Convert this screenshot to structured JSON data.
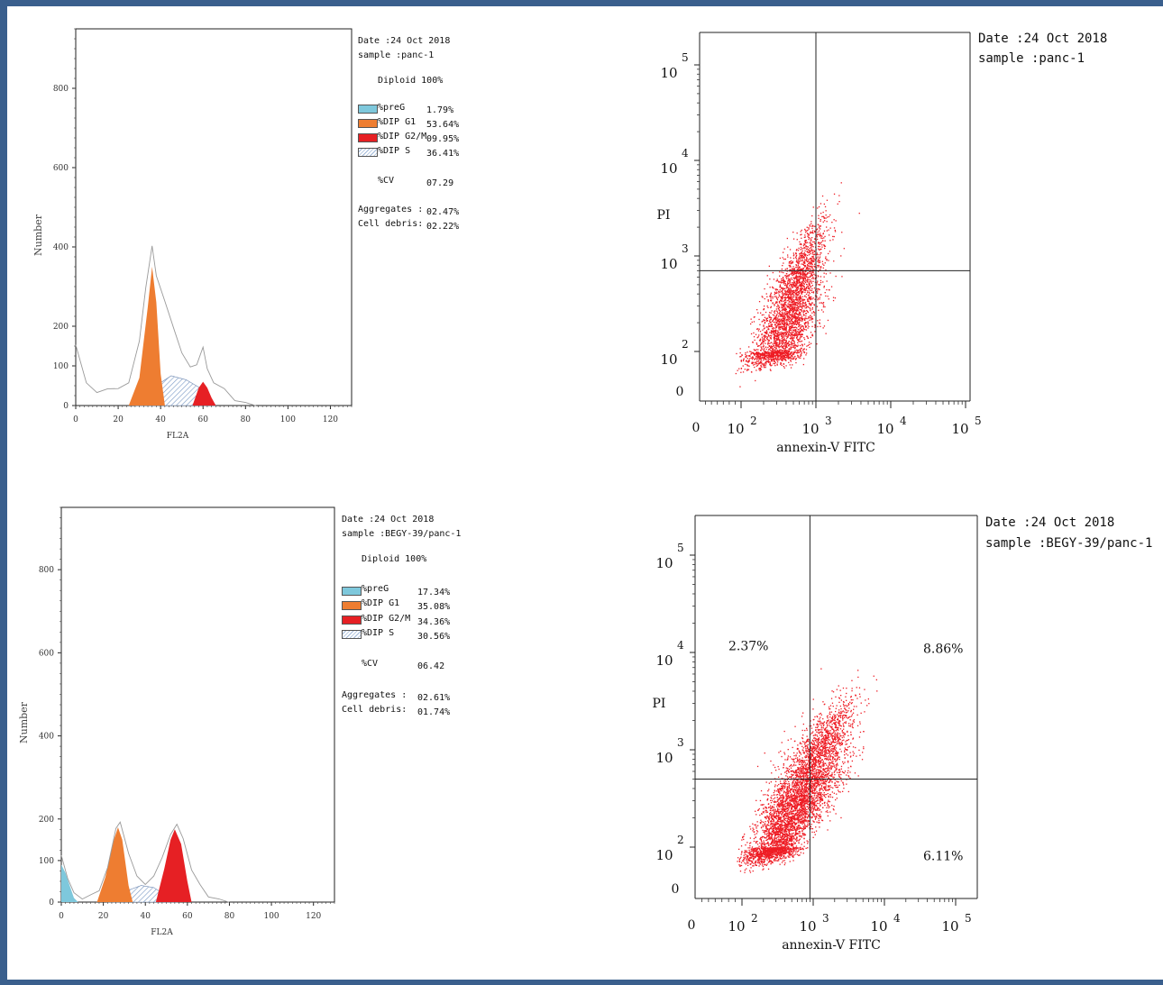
{
  "chart_data": [
    {
      "type": "area",
      "panel": "histogram-top",
      "xlabel": "FL2A",
      "ylabel": "Number",
      "xlim": [
        0,
        130
      ],
      "ylim": [
        0,
        950
      ],
      "x_ticks": [
        "0",
        "20",
        "40",
        "60",
        "80",
        "100",
        "120"
      ],
      "y_ticks": [
        "0",
        "100",
        "200",
        "400",
        "600",
        "800"
      ],
      "series": [
        {
          "name": "%preG",
          "value_label": "1.79%",
          "color": "#7ec8dc"
        },
        {
          "name": "%DIP G1",
          "value_label": "53.64%",
          "color": "#ee7d31"
        },
        {
          "name": "%DIP G2/M",
          "value_label": "09.95%",
          "color": "#e62024"
        },
        {
          "name": "%DIP S",
          "value_label": "36.41%",
          "color": "#9fb8d8"
        }
      ],
      "peaks": [
        {
          "series": "%DIP G1",
          "x": [
            25,
            30,
            34,
            36,
            38,
            40,
            42
          ],
          "y": [
            0,
            70,
            250,
            350,
            260,
            80,
            0
          ]
        },
        {
          "series": "%DIP G2/M",
          "x": [
            55,
            58,
            60,
            62,
            64,
            66
          ],
          "y": [
            0,
            45,
            60,
            45,
            20,
            0
          ]
        },
        {
          "series": "%DIP S",
          "x": [
            28,
            35,
            45,
            52,
            60,
            66
          ],
          "y": [
            0,
            40,
            75,
            65,
            40,
            0
          ]
        }
      ],
      "outline": {
        "x": [
          0,
          5,
          10,
          15,
          20,
          25,
          30,
          33,
          36,
          38,
          42,
          46,
          50,
          54,
          57,
          60,
          62,
          65,
          70,
          75,
          80,
          85
        ],
        "y": [
          150,
          60,
          30,
          45,
          40,
          60,
          160,
          300,
          400,
          330,
          260,
          200,
          130,
          100,
          100,
          150,
          90,
          60,
          40,
          15,
          5,
          2
        ]
      },
      "annotations": {
        "date": "Date :24 Oct 2018",
        "sample": "sample :panc-1",
        "ploidy": "Diploid 100%",
        "cv_label": "%CV",
        "cv_value": "07.29",
        "aggregates_label": "Aggregates :",
        "aggregates_value": "02.47%",
        "debris_label": "Cell debris:",
        "debris_value": "02.22%"
      }
    },
    {
      "type": "scatter",
      "panel": "dotplot-top",
      "xlabel": "annexin-V FITC",
      "ylabel": "PI",
      "x_scale": "log",
      "y_scale": "log",
      "x_ticks": [
        "0",
        "10^2",
        "10^3",
        "10^4",
        "10^5"
      ],
      "y_ticks": [
        "0",
        "10^2",
        "10^3",
        "10^4",
        "10^5"
      ],
      "gate": {
        "x": 1000,
        "y": 700
      },
      "point_color": "#ee1c24",
      "clusters": [
        {
          "center": [
            400,
            180
          ],
          "spread_decades": [
            0.22,
            0.35
          ],
          "count": 2400
        },
        {
          "center": [
            600,
            700
          ],
          "spread_decades": [
            0.18,
            0.25
          ],
          "count": 800
        }
      ],
      "quadrant_labels": {},
      "annotations": {
        "date": "Date :24 Oct 2018",
        "sample": "sample :panc-1"
      }
    },
    {
      "type": "area",
      "panel": "histogram-bottom",
      "xlabel": "FL2A",
      "ylabel": "Number",
      "xlim": [
        0,
        130
      ],
      "ylim": [
        0,
        950
      ],
      "x_ticks": [
        "0",
        "20",
        "40",
        "60",
        "80",
        "100",
        "120"
      ],
      "y_ticks": [
        "0",
        "100",
        "200",
        "400",
        "600",
        "800"
      ],
      "series": [
        {
          "name": "%preG",
          "value_label": "17.34%",
          "color": "#7ec8dc"
        },
        {
          "name": "%DIP G1",
          "value_label": "35.08%",
          "color": "#ee7d31"
        },
        {
          "name": "%DIP G2/M",
          "value_label": "34.36%",
          "color": "#e62024"
        },
        {
          "name": "%DIP S",
          "value_label": "30.56%",
          "color": "#9fb8d8"
        }
      ],
      "peaks": [
        {
          "series": "%preG",
          "x": [
            0,
            2,
            4,
            6,
            8
          ],
          "y": [
            90,
            70,
            40,
            10,
            0
          ]
        },
        {
          "series": "%DIP G1",
          "x": [
            17,
            21,
            25,
            27,
            29,
            32,
            34
          ],
          "y": [
            0,
            60,
            150,
            180,
            150,
            40,
            0
          ]
        },
        {
          "series": "%DIP G2/M",
          "x": [
            45,
            49,
            52,
            54,
            57,
            60,
            62
          ],
          "y": [
            0,
            80,
            150,
            175,
            140,
            50,
            0
          ]
        },
        {
          "series": "%DIP S",
          "x": [
            22,
            30,
            38,
            44,
            50,
            55
          ],
          "y": [
            0,
            25,
            40,
            35,
            15,
            0
          ]
        }
      ],
      "outline": {
        "x": [
          0,
          3,
          6,
          10,
          14,
          18,
          22,
          26,
          28,
          32,
          36,
          40,
          44,
          48,
          52,
          55,
          58,
          62,
          66,
          70,
          75,
          80
        ],
        "y": [
          110,
          60,
          20,
          10,
          15,
          30,
          80,
          180,
          190,
          120,
          60,
          45,
          60,
          110,
          160,
          190,
          150,
          80,
          40,
          15,
          5,
          2
        ]
      },
      "annotations": {
        "date": "Date :24 Oct 2018",
        "sample": "sample :BEGY-39/panc-1",
        "ploidy": "Diploid 100%",
        "cv_label": "%CV",
        "cv_value": "06.42",
        "aggregates_label": "Aggregates :",
        "aggregates_value": "02.61%",
        "debris_label": "Cell debris:",
        "debris_value": "01.74%"
      }
    },
    {
      "type": "scatter",
      "panel": "dotplot-bottom",
      "xlabel": "annexin-V FITC",
      "ylabel": "PI",
      "x_scale": "log",
      "y_scale": "log",
      "x_ticks": [
        "0",
        "10^2",
        "10^3",
        "10^4",
        "10^5"
      ],
      "y_ticks": [
        "0",
        "10^2",
        "10^3",
        "10^4",
        "10^5"
      ],
      "gate": {
        "x": 900,
        "y": 500
      },
      "point_color": "#ee1c24",
      "clusters": [
        {
          "center": [
            350,
            150
          ],
          "spread_decades": [
            0.22,
            0.35
          ],
          "count": 2600
        },
        {
          "center": [
            900,
            350
          ],
          "spread_decades": [
            0.25,
            0.25
          ],
          "count": 1300
        },
        {
          "center": [
            1300,
            1100
          ],
          "spread_decades": [
            0.22,
            0.22
          ],
          "count": 1100
        }
      ],
      "quadrant_labels": {
        "upper_left": "2.37%",
        "upper_right": "8.86%",
        "lower_right": "6.11%"
      },
      "annotations": {
        "date": "Date :24 Oct 2018",
        "sample": "sample :BEGY-39/panc-1"
      }
    }
  ]
}
